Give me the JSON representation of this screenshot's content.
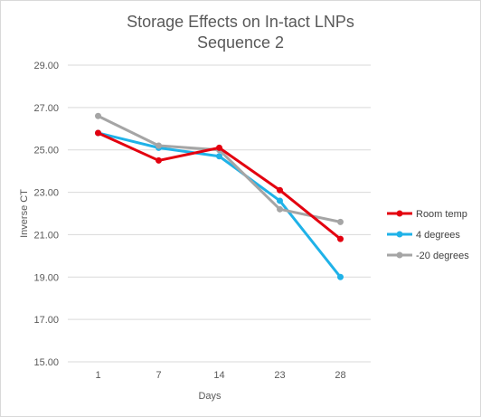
{
  "chart_data": {
    "type": "line",
    "title": [
      "Storage Effects on In-tact LNPs",
      "Sequence 2"
    ],
    "xlabel": "Days",
    "ylabel": "Inverse CT",
    "categories": [
      "1",
      "7",
      "14",
      "23",
      "28"
    ],
    "yticks": [
      "15.00",
      "17.00",
      "19.00",
      "21.00",
      "23.00",
      "25.00",
      "27.00",
      "29.00"
    ],
    "ylim": [
      15,
      29
    ],
    "grid": true,
    "legend_position": "right",
    "series": [
      {
        "name": "Room temp",
        "color": "#e3000f",
        "values": [
          25.8,
          24.5,
          25.1,
          23.1,
          20.8
        ]
      },
      {
        "name": "4 degrees",
        "color": "#1fb2e8",
        "values": [
          25.8,
          25.1,
          24.7,
          22.6,
          19.0
        ]
      },
      {
        "name": "-20 degrees",
        "color": "#a5a5a5",
        "values": [
          26.6,
          25.2,
          25.0,
          22.2,
          21.6
        ]
      }
    ]
  }
}
